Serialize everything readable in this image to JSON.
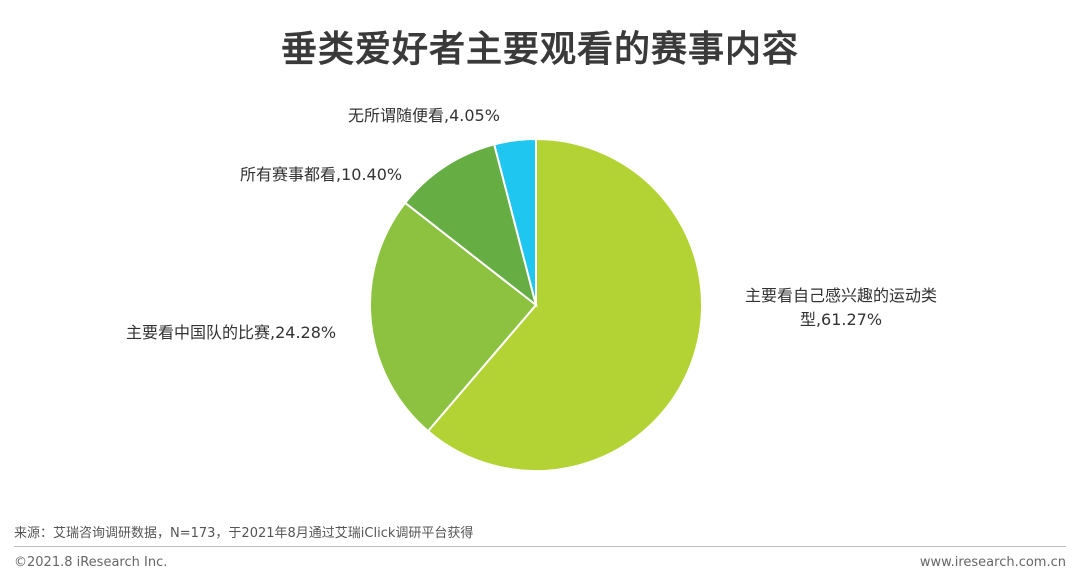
{
  "chart_data": {
    "type": "pie",
    "title": "垂类爱好者主要观看的赛事内容",
    "slices": [
      {
        "label": "主要看自己感兴趣的运动类型",
        "display": "主要看自己感兴趣的运动类型,61.27%",
        "value": 61.27,
        "color": "#b3d334"
      },
      {
        "label": "主要看中国队的比赛",
        "display": "主要看中国队的比赛,24.28%",
        "value": 24.28,
        "color": "#8cc23f"
      },
      {
        "label": "所有赛事都看",
        "display": "所有赛事都看,10.40%",
        "value": 10.4,
        "color": "#66ad44"
      },
      {
        "label": "无所谓随便看",
        "display": "无所谓随便看,4.05%",
        "value": 4.05,
        "color": "#1ec6f0"
      }
    ],
    "start_angle_deg": 0,
    "direction": "clockwise"
  },
  "footer": {
    "source": "来源：艾瑞咨询调研数据，N=173，于2021年8月通过艾瑞iClick调研平台获得",
    "copyright": "©2021.8 iResearch Inc.",
    "website": "www.iresearch.com.cn"
  }
}
